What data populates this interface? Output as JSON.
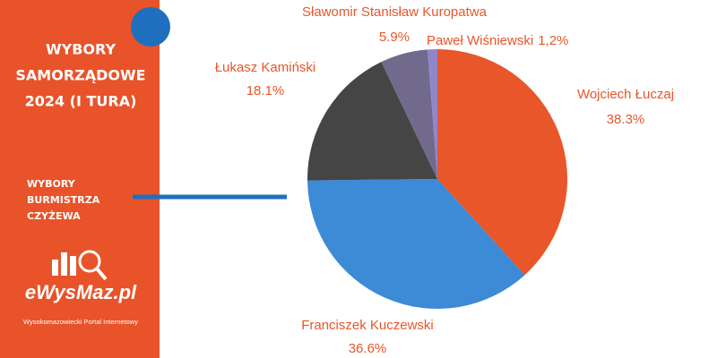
{
  "sidebar": {
    "heading_lines": [
      "WYBORY",
      "SAMORZĄDOWE",
      "2024 (I TURA)"
    ],
    "subheading_lines": [
      "WYBORY",
      "BURMISTRZA",
      "CZYŻEWA"
    ],
    "logo": "eWysMaz.pl",
    "logo_tagline": "Wysokomazowiecki Portal Internetowy"
  },
  "chart_data": {
    "type": "pie",
    "categories": [
      "Wojciech Łuczaj",
      "Franciszek Kuczewski",
      "Łukasz Kamiński",
      "Sławomir Stanisław Kuropatwa",
      "Paweł Wiśniewski"
    ],
    "values": [
      38.3,
      36.6,
      18.1,
      5.9,
      1.2
    ],
    "value_labels": [
      "38.3%",
      "36.6%",
      "18.1%",
      "5.9%",
      "1,2%"
    ],
    "colors": [
      "#e8562a",
      "#3d8ad6",
      "#454545",
      "#716a8c",
      "#8f86cc"
    ],
    "label_color": "#e8562a"
  }
}
